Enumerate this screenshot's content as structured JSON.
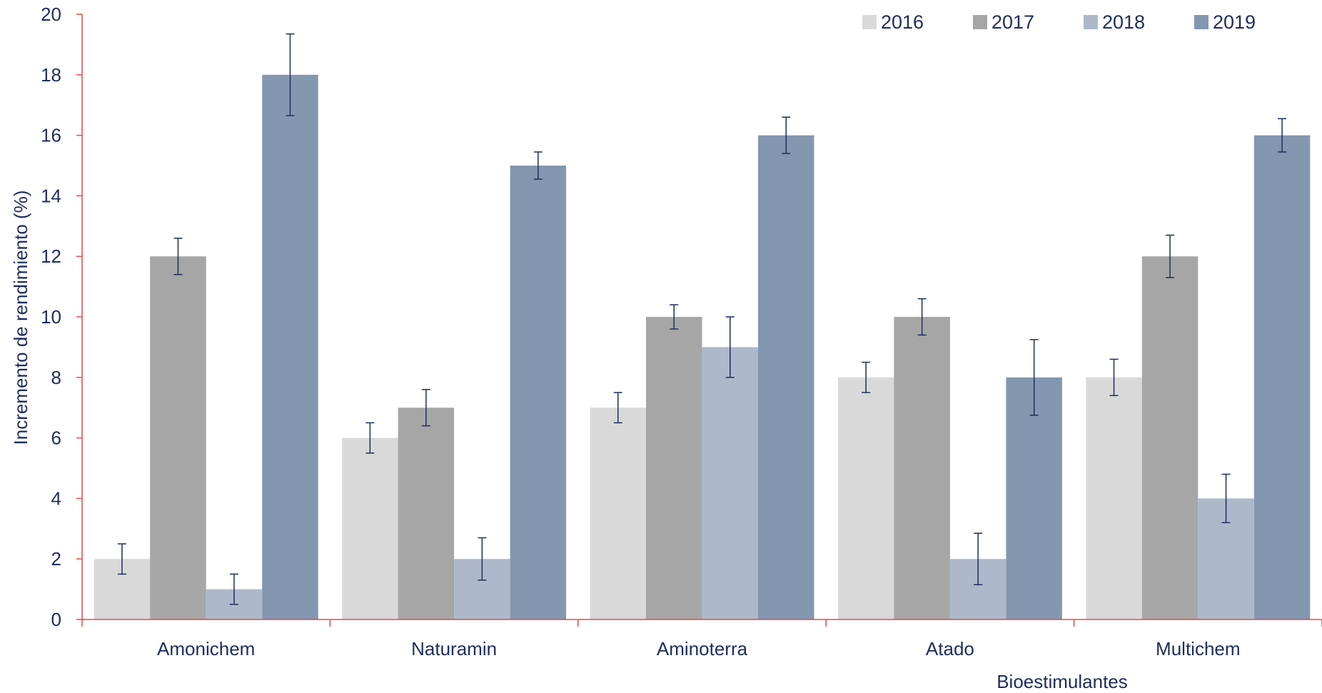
{
  "chart_data": {
    "type": "bar",
    "title": "",
    "xlabel": "Bioestimulantes",
    "ylabel": "Incremento de rendimiento (%)",
    "ylim": [
      0,
      20
    ],
    "yticks": [
      0,
      2,
      4,
      6,
      8,
      10,
      12,
      14,
      16,
      18,
      20
    ],
    "categories": [
      "Amonichem",
      "Naturamin",
      "Aminoterra",
      "Atado",
      "Multichem"
    ],
    "series": [
      {
        "name": "2016",
        "color": "#d9d9d9",
        "values": [
          2,
          6,
          7,
          8,
          8
        ],
        "errors": [
          0.5,
          0.5,
          0.5,
          0.5,
          0.6
        ]
      },
      {
        "name": "2017",
        "color": "#a6a6a6",
        "values": [
          12,
          7,
          10,
          10,
          12
        ],
        "errors": [
          0.6,
          0.6,
          0.4,
          0.6,
          0.7
        ]
      },
      {
        "name": "2018",
        "color": "#adb9ca",
        "values": [
          1,
          2,
          9,
          2,
          4
        ],
        "errors": [
          0.5,
          0.7,
          1.0,
          0.85,
          0.8
        ]
      },
      {
        "name": "2019",
        "color": "#8497b0",
        "values": [
          18,
          15,
          16,
          8,
          16
        ],
        "errors": [
          1.35,
          0.45,
          0.6,
          1.25,
          0.55
        ]
      }
    ],
    "legend": "top-right",
    "grid": false,
    "axis_color": "#e8474a",
    "errorbar_color": "#1f2d5c"
  }
}
